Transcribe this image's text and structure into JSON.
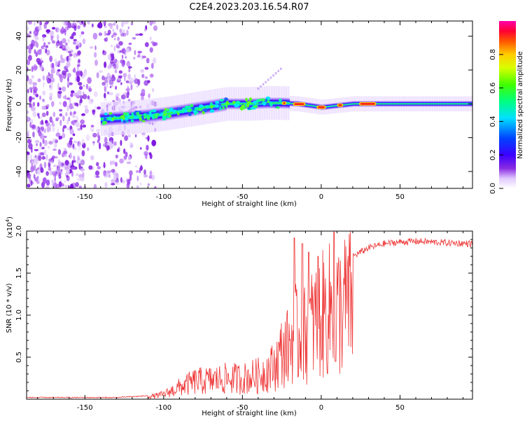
{
  "title": "C2E4.2023.203.16.54.R07",
  "chart_data": [
    {
      "type": "heatmap",
      "xlabel": "Height of straight line (km)",
      "ylabel": "Frequency (Hz)",
      "xlim": [
        -187,
        96
      ],
      "ylim": [
        -50,
        49
      ],
      "xticks": [
        -150,
        -100,
        -50,
        0,
        50
      ],
      "yticks": [
        -40,
        -20,
        0,
        20,
        40
      ],
      "ridge": {
        "x": [
          -140,
          -120,
          -100,
          -80,
          -60,
          -45,
          -35,
          -25,
          -15,
          0,
          20,
          50,
          96
        ],
        "y": [
          -9,
          -8,
          -6,
          -3,
          0,
          0,
          0.5,
          0.5,
          0,
          -2,
          0,
          0,
          0
        ]
      },
      "noise_region_x": [
        -187,
        -105
      ],
      "colorbar": {
        "label": "Normalized spectral amplitude",
        "ticks": [
          "0.0",
          "0.2",
          "0.4",
          "0.6",
          "0.8"
        ],
        "range": [
          0,
          1
        ]
      }
    },
    {
      "type": "line",
      "xlabel": "Height of straight line (km)",
      "ylabel": "SNR (10 * v/v)",
      "multiplier": "(x10",
      "multiplier_exp": "4",
      "multiplier_close": ")",
      "xlim": [
        -187,
        96
      ],
      "ylim": [
        0,
        2.0
      ],
      "xticks": [
        -150,
        -100,
        -50,
        0,
        50
      ],
      "yticks": [
        "0.5",
        "1.0",
        "1.5",
        "2.0"
      ],
      "series": [
        {
          "color": "#ee3333",
          "envelope": {
            "x": [
              -187,
              -130,
              -110,
              -100,
              -90,
              -80,
              -70,
              -60,
              -50,
              -40,
              -30,
              -25,
              -20,
              -17,
              -15,
              -12,
              -10,
              -5,
              0,
              5,
              8,
              10,
              15,
              20,
              30,
              40,
              50,
              60,
              70,
              80,
              96
            ],
            "y": [
              0.02,
              0.02,
              0.04,
              0.08,
              0.2,
              0.3,
              0.32,
              0.35,
              0.35,
              0.4,
              0.55,
              0.8,
              0.9,
              1.2,
              1.0,
              1.05,
              1.1,
              1.3,
              1.4,
              1.5,
              1.6,
              1.5,
              1.6,
              1.7,
              1.8,
              1.85,
              1.87,
              1.88,
              1.87,
              1.86,
              1.85
            ]
          },
          "spikes": [
            [
              -17,
              1.92
            ],
            [
              -12,
              1.85
            ],
            [
              -8,
              1.75
            ],
            [
              -2,
              1.7
            ],
            [
              8,
              1.99
            ],
            [
              9,
              0.45
            ]
          ]
        }
      ]
    }
  ]
}
